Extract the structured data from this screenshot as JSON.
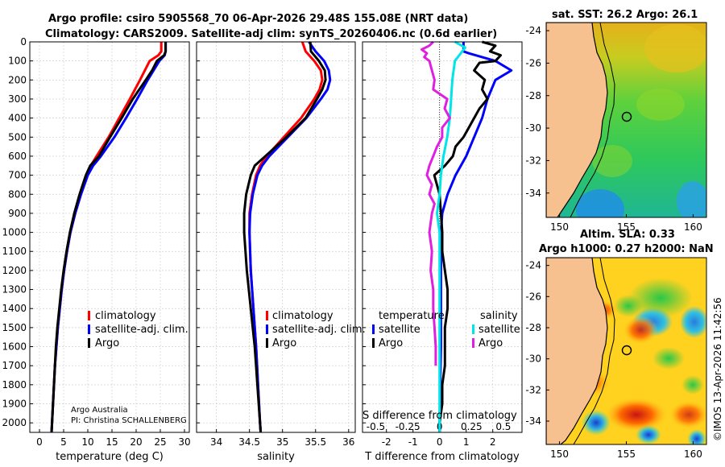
{
  "title": {
    "line1": "Argo profile: csiro 5905568_70 06-Apr-2026 29.48S 155.08E (NRT data)",
    "line2": "Climatology: CARS2009. Satellite-adj clim: synTS_20260406.nc (0.6d earlier)"
  },
  "credit": {
    "line1": "Argo Australia",
    "line2": "PI: Christina SCHALLENBERG"
  },
  "timestamp": "©IMOS 13-Apr-2026 11:42:56",
  "colors": {
    "climatology": "#ff0000",
    "satellite": "#0000ff",
    "argo": "#000000",
    "satellite_s": "#00e5e5",
    "argo_s": "#e020e0",
    "land": "#f6c08f"
  },
  "chart_data": [
    {
      "type": "line",
      "id": "temperature",
      "xlabel": "temperature (deg C)",
      "xlim": [
        -2,
        31
      ],
      "xticks": [
        0,
        5,
        10,
        15,
        20,
        25,
        30
      ],
      "ylim": [
        0,
        2050
      ],
      "yticks": [
        0,
        100,
        200,
        300,
        400,
        500,
        600,
        700,
        800,
        900,
        1000,
        1100,
        1200,
        1300,
        1400,
        1500,
        1600,
        1700,
        1800,
        1900,
        2000
      ],
      "legend": [
        "climatology",
        "satellite-adj. clim.",
        "Argo"
      ],
      "series": [
        {
          "name": "climatology",
          "depth": [
            0,
            50,
            70,
            100,
            200,
            300,
            400,
            500,
            600,
            650,
            700,
            800,
            900,
            1000,
            1100,
            1200,
            1300,
            1400,
            1500,
            1600,
            1700,
            1800,
            1900,
            2000,
            2050
          ],
          "values": [
            25.2,
            25.2,
            24.6,
            22.8,
            20.8,
            18.7,
            16.5,
            14.3,
            11.8,
            10.6,
            9.8,
            8.5,
            7.4,
            6.4,
            5.7,
            5.1,
            4.6,
            4.2,
            3.8,
            3.5,
            3.2,
            3.0,
            2.8,
            2.6,
            2.5
          ]
        },
        {
          "name": "satellite-adj. clim.",
          "depth": [
            0,
            50,
            70,
            100,
            200,
            300,
            400,
            500,
            600,
            650,
            700,
            800,
            900,
            1000,
            1100,
            1200,
            1300,
            1400,
            1500,
            1600,
            1700,
            1800,
            1900,
            2000,
            2050
          ],
          "values": [
            26.1,
            26.1,
            25.9,
            24.8,
            22.4,
            20.2,
            17.9,
            15.5,
            12.7,
            11.1,
            10.0,
            8.6,
            7.4,
            6.4,
            5.7,
            5.1,
            4.6,
            4.2,
            3.8,
            3.5,
            3.2,
            3.0,
            2.8,
            2.6,
            2.5
          ]
        },
        {
          "name": "Argo",
          "depth": [
            0,
            50,
            70,
            100,
            150,
            200,
            300,
            400,
            500,
            600,
            650,
            700,
            800,
            900,
            1000,
            1100,
            1200,
            1300,
            1400,
            1500,
            1600,
            1700,
            1800,
            1900,
            2000,
            2050
          ],
          "values": [
            26.1,
            26.1,
            25.8,
            24.3,
            23.3,
            22.0,
            19.3,
            17.0,
            14.6,
            12.3,
            10.5,
            9.6,
            8.3,
            7.2,
            6.3,
            5.6,
            5.0,
            4.5,
            4.1,
            3.7,
            3.4,
            3.2,
            3.0,
            2.8,
            2.6,
            2.5
          ]
        }
      ]
    },
    {
      "type": "line",
      "id": "salinity",
      "xlabel": "salinity",
      "xlim": [
        33.7,
        36.1
      ],
      "xticks": [
        34,
        34.5,
        35,
        35.5,
        36
      ],
      "xtick_labels": [
        "34",
        "34.5",
        "35",
        "35.5",
        "36"
      ],
      "ylim": [
        0,
        2050
      ],
      "legend": [
        "climatology",
        "satellite-adj. clim.",
        "Argo"
      ],
      "series": [
        {
          "name": "climatology",
          "depth": [
            0,
            50,
            100,
            150,
            200,
            250,
            300,
            400,
            500,
            600,
            650,
            700,
            800,
            900,
            1000,
            1200,
            1400,
            1600,
            1800,
            2000,
            2050
          ],
          "values": [
            35.3,
            35.35,
            35.48,
            35.58,
            35.6,
            35.56,
            35.48,
            35.28,
            35.02,
            34.76,
            34.66,
            34.6,
            34.54,
            34.5,
            34.5,
            34.52,
            34.56,
            34.6,
            34.63,
            34.66,
            34.67
          ]
        },
        {
          "name": "satellite-adj. clim.",
          "depth": [
            0,
            50,
            100,
            150,
            200,
            250,
            300,
            400,
            500,
            600,
            650,
            700,
            800,
            900,
            1000,
            1200,
            1400,
            1600,
            1800,
            2000,
            2050
          ],
          "values": [
            35.4,
            35.5,
            35.63,
            35.7,
            35.72,
            35.68,
            35.58,
            35.36,
            35.08,
            34.8,
            34.69,
            34.62,
            34.55,
            34.51,
            34.5,
            34.52,
            34.56,
            34.6,
            34.63,
            34.66,
            34.67
          ]
        },
        {
          "name": "Argo",
          "depth": [
            0,
            50,
            100,
            150,
            200,
            250,
            300,
            400,
            500,
            600,
            650,
            700,
            800,
            900,
            1000,
            1200,
            1400,
            1600,
            1700,
            1800,
            2000,
            2050
          ],
          "values": [
            35.42,
            35.43,
            35.55,
            35.64,
            35.65,
            35.6,
            35.52,
            35.35,
            35.06,
            34.74,
            34.58,
            34.52,
            34.45,
            34.42,
            34.42,
            34.46,
            34.52,
            34.58,
            34.6,
            34.62,
            34.66,
            34.67
          ]
        }
      ]
    },
    {
      "type": "line",
      "id": "difference",
      "xlabel": "T difference from climatology",
      "xlabel_top": "S difference from climatology",
      "xlim": [
        -2.9,
        3.1
      ],
      "xticks": [
        -2,
        -1,
        0,
        1,
        2
      ],
      "xtick_labels": [
        "-2",
        "-1",
        "0",
        "1",
        "2"
      ],
      "sticks": [
        -0.5,
        -0.25,
        0,
        0.25,
        0.5
      ],
      "stick_labels": [
        "-0.5",
        "-0.25",
        "0",
        "0.25",
        "0.5"
      ],
      "ylim": [
        0,
        2050
      ],
      "legend_titles": [
        "temperature",
        "salinity"
      ],
      "legend_temperature": [
        "satellite",
        "Argo"
      ],
      "legend_salinity": [
        "satellite",
        "Argo"
      ],
      "series": [
        {
          "name": "T satellite",
          "depth": [
            0,
            50,
            60,
            100,
            150,
            200,
            300,
            400,
            500,
            600,
            700,
            800,
            900,
            1000,
            1100,
            1200,
            1400,
            1600,
            1800,
            2000,
            2050
          ],
          "values": [
            0.9,
            0.9,
            1.1,
            2.1,
            2.7,
            2.1,
            1.8,
            1.6,
            1.3,
            1.0,
            0.6,
            0.3,
            0.1,
            0.05,
            0.05,
            0.05,
            0.05,
            0.05,
            0.02,
            0.0,
            0.0
          ]
        },
        {
          "name": "T Argo",
          "depth": [
            0,
            20,
            50,
            70,
            100,
            110,
            150,
            200,
            250,
            300,
            350,
            400,
            450,
            500,
            550,
            600,
            650,
            700,
            800,
            900,
            1000,
            1100,
            1200,
            1300,
            1400,
            1500,
            1600,
            1700,
            1800,
            1900,
            2000,
            2050
          ],
          "values": [
            1.6,
            2.1,
            1.9,
            2.3,
            2.1,
            1.5,
            1.3,
            1.7,
            1.6,
            1.8,
            1.5,
            1.3,
            1.1,
            0.9,
            0.6,
            0.5,
            0.2,
            -0.2,
            0.0,
            0.05,
            0.1,
            0.1,
            0.2,
            0.3,
            0.3,
            0.2,
            0.2,
            0.2,
            0.1,
            0.1,
            0.0,
            0.0
          ]
        },
        {
          "name": "S satellite",
          "depth": [
            0,
            30,
            100,
            200,
            300,
            400,
            500,
            600,
            700,
            800,
            900,
            1000,
            1200,
            1400,
            1600,
            1800,
            2000,
            2050
          ],
          "values": [
            0.12,
            0.2,
            0.12,
            0.1,
            0.09,
            0.08,
            0.06,
            0.03,
            0.01,
            0.0,
            -0.02,
            0.0,
            0.0,
            0.0,
            0.0,
            0.0,
            0.0,
            0.0
          ]
        },
        {
          "name": "S Argo",
          "depth": [
            0,
            20,
            40,
            60,
            80,
            100,
            150,
            200,
            250,
            300,
            350,
            400,
            450,
            500,
            550,
            600,
            650,
            700,
            750,
            800,
            850,
            900,
            1000,
            1100,
            1200,
            1300,
            1400,
            1500,
            1600,
            1700
          ],
          "values": [
            -0.05,
            -0.08,
            -0.14,
            -0.1,
            -0.12,
            -0.08,
            -0.06,
            -0.04,
            -0.05,
            0.06,
            0.04,
            0.08,
            0.02,
            0.02,
            -0.02,
            -0.05,
            -0.08,
            -0.1,
            -0.06,
            -0.08,
            -0.04,
            -0.06,
            -0.08,
            -0.06,
            -0.07,
            -0.05,
            -0.05,
            -0.04,
            -0.03,
            -0.03
          ]
        }
      ]
    },
    {
      "type": "heatmap",
      "id": "sst-map",
      "title": "sat. SST: 26.2 Argo: 26.1",
      "xlim": [
        149,
        161
      ],
      "ylim": [
        -35.5,
        -23.5
      ],
      "xticks": [
        150,
        155,
        160
      ],
      "yticks": [
        -24,
        -26,
        -28,
        -30,
        -32,
        -34
      ],
      "float_position": [
        155.08,
        -29.48
      ]
    },
    {
      "type": "heatmap",
      "id": "sla-map",
      "title_line1": "Altim. SLA: 0.33",
      "title_line2": "Argo h1000: 0.27 h2000: NaN",
      "xlim": [
        149,
        161
      ],
      "ylim": [
        -35.5,
        -23.5
      ],
      "xticks": [
        150,
        155,
        160
      ],
      "yticks": [
        -24,
        -26,
        -28,
        -30,
        -32,
        -34
      ],
      "float_position": [
        155.08,
        -29.48
      ]
    }
  ]
}
